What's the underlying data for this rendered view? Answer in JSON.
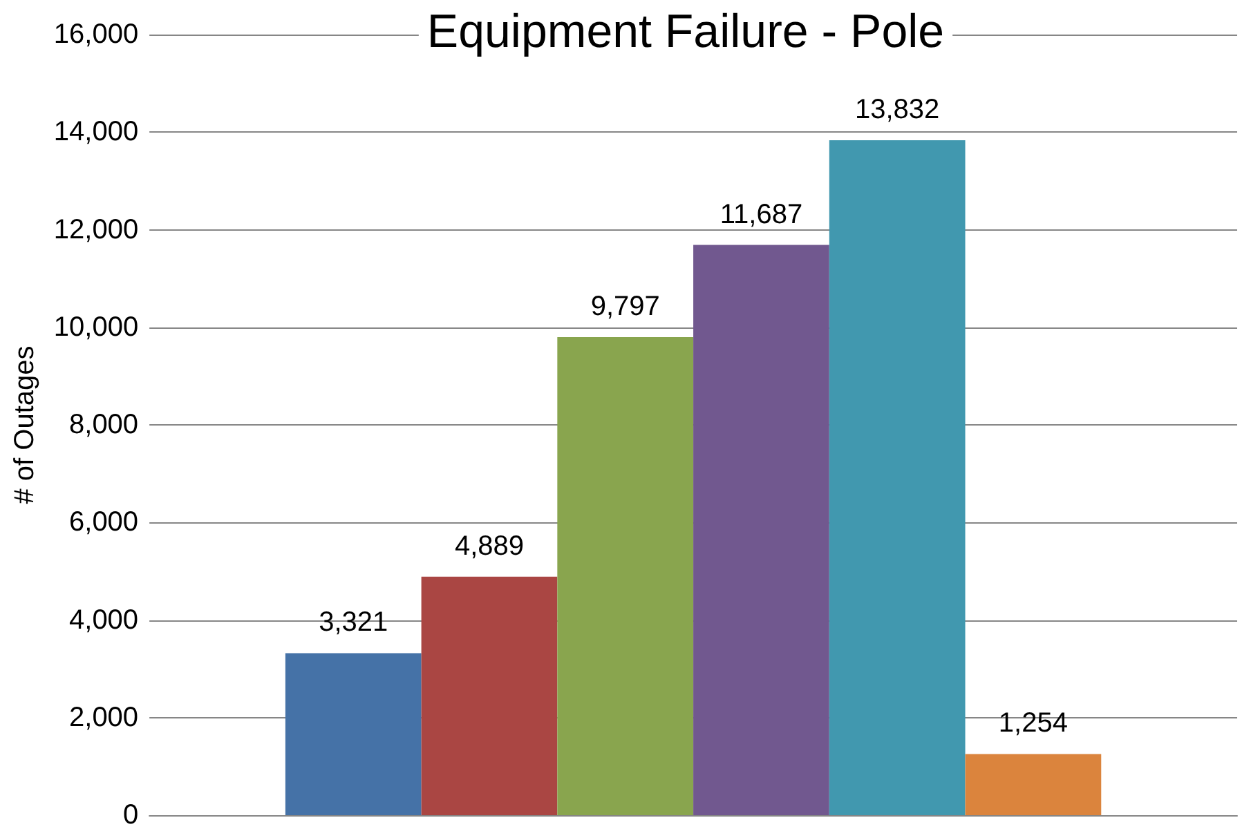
{
  "chart_data": {
    "type": "bar",
    "title": "Equipment Failure - Pole",
    "ylabel": "# of Outages",
    "categories": [
      null
    ],
    "series": [
      {
        "color": "#4572a7",
        "values": [
          3321
        ],
        "value_labels": [
          "3,321"
        ]
      },
      {
        "color": "#aa4643",
        "values": [
          4889
        ],
        "value_labels": [
          "4,889"
        ]
      },
      {
        "color": "#89a54e",
        "values": [
          9797
        ],
        "value_labels": [
          "9,797"
        ]
      },
      {
        "color": "#71588f",
        "values": [
          11687
        ],
        "value_labels": [
          "11,687"
        ]
      },
      {
        "color": "#4198af",
        "values": [
          13832
        ],
        "value_labels": [
          "13,832"
        ]
      },
      {
        "color": "#db843d",
        "values": [
          1254
        ],
        "value_labels": [
          "1,254"
        ]
      }
    ],
    "ylim": [
      0,
      16000
    ],
    "yticks": [
      0,
      {
        "value": 2000,
        "label": "2,000"
      },
      {
        "value": 4000,
        "label": "4,000"
      },
      {
        "value": 6000,
        "label": "6,000"
      },
      {
        "value": 8000,
        "label": "8,000"
      },
      {
        "value": 10000,
        "label": "10,000"
      },
      {
        "value": 12000,
        "label": "12,000"
      },
      {
        "value": 14000,
        "label": "14,000"
      },
      {
        "value": 16000,
        "label": "16,000"
      }
    ],
    "grid": "y"
  }
}
